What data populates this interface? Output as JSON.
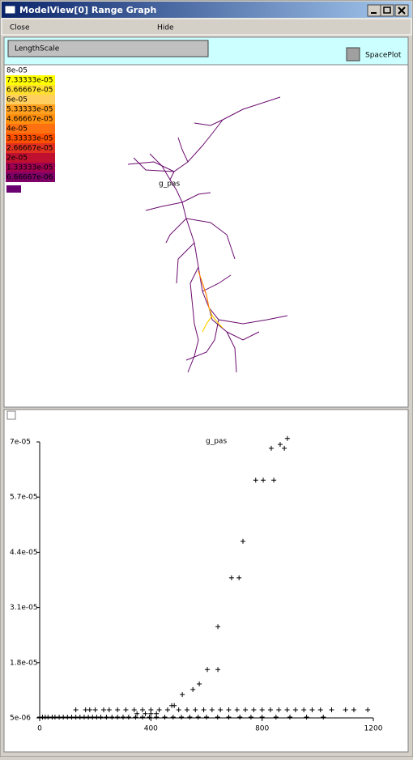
{
  "window": {
    "title": "ModelView[0] Range Graph"
  },
  "menu": [
    "Close",
    "Hide"
  ],
  "shape_plot": {
    "button": "LengthScale",
    "checkbox": "SpacePlot",
    "label": "g_pas",
    "scale": [
      {
        "label": "8e-05",
        "color": "#ffffff"
      },
      {
        "label": "7.33333e-05",
        "color": "#ffff00"
      },
      {
        "label": "6.66667e-05",
        "color": "#ffe030"
      },
      {
        "label": "6e-05",
        "color": "#ffd060"
      },
      {
        "label": "5.33333e-05",
        "color": "#ffa020"
      },
      {
        "label": "4.66667e-05",
        "color": "#ff9010"
      },
      {
        "label": "4e-05",
        "color": "#ff7010"
      },
      {
        "label": "3.33333e-05",
        "color": "#ff5000"
      },
      {
        "label": "2.66667e-05",
        "color": "#e03020"
      },
      {
        "label": "2e-05",
        "color": "#c01030"
      },
      {
        "label": "1.33333e-05",
        "color": "#a00050"
      },
      {
        "label": "6.66667e-06",
        "color": "#800068"
      }
    ]
  },
  "chart_data": {
    "type": "scatter",
    "title": "g_pas",
    "color": "#000000",
    "x": [
      833,
      865,
      880,
      891,
      777,
      804,
      842,
      731,
      690,
      717,
      641,
      603,
      641,
      574,
      551,
      513,
      475,
      484,
      0,
      10,
      20,
      30,
      45,
      55,
      70,
      85,
      100,
      115,
      130,
      145,
      160,
      175,
      190,
      205,
      220,
      240,
      260,
      280,
      300,
      320,
      345,
      370,
      395,
      420,
      450,
      480,
      510,
      540,
      570,
      600,
      640,
      680,
      720,
      760,
      800,
      850,
      900,
      960,
      1020,
      130,
      165,
      180,
      200,
      230,
      250,
      280,
      310,
      340,
      370,
      400,
      430,
      460,
      500,
      530,
      560,
      590,
      620,
      650,
      680,
      710,
      740,
      770,
      800,
      830,
      860,
      890,
      920,
      950,
      980,
      1010,
      1050,
      1100,
      1130,
      1180,
      350,
      380,
      400,
      420
    ],
    "values": [
      6.85e-05,
      6.94e-05,
      6.85e-05,
      7.08e-05,
      6.1e-05,
      6.1e-05,
      6.1e-05,
      4.66e-05,
      3.8e-05,
      3.8e-05,
      2.65e-05,
      1.64e-05,
      1.64e-05,
      1.3e-05,
      1.17e-05,
      1.05e-05,
      7.9e-06,
      7.9e-06,
      5.2e-06,
      5.2e-06,
      5.2e-06,
      5.2e-06,
      5.2e-06,
      5.2e-06,
      5.2e-06,
      5.2e-06,
      5.2e-06,
      5.2e-06,
      5.2e-06,
      5.2e-06,
      5.2e-06,
      5.2e-06,
      5.2e-06,
      5.2e-06,
      5.2e-06,
      5.2e-06,
      5.2e-06,
      5.2e-06,
      5.2e-06,
      5.2e-06,
      5.2e-06,
      5.2e-06,
      5.2e-06,
      5.2e-06,
      5.2e-06,
      5.2e-06,
      5.2e-06,
      5.2e-06,
      5.2e-06,
      5.2e-06,
      5.2e-06,
      5.2e-06,
      5.2e-06,
      5.2e-06,
      5.2e-06,
      5.2e-06,
      5.2e-06,
      5.2e-06,
      5.2e-06,
      6.9e-06,
      6.9e-06,
      6.9e-06,
      6.9e-06,
      6.9e-06,
      6.9e-06,
      6.9e-06,
      6.9e-06,
      6.9e-06,
      6.9e-06,
      6.9e-06,
      6.9e-06,
      6.9e-06,
      6.9e-06,
      6.9e-06,
      6.9e-06,
      6.9e-06,
      6.9e-06,
      6.9e-06,
      6.9e-06,
      6.9e-06,
      6.9e-06,
      6.9e-06,
      6.9e-06,
      6.9e-06,
      6.9e-06,
      6.9e-06,
      6.9e-06,
      6.9e-06,
      6.9e-06,
      6.9e-06,
      6.9e-06,
      6.9e-06,
      6.9e-06,
      6.9e-06,
      6e-06,
      6e-06,
      6e-06,
      6e-06
    ],
    "xlim": [
      0,
      1200
    ],
    "xticks": [
      0,
      400,
      800,
      1200
    ],
    "ylim": [
      5e-06,
      7e-05
    ],
    "yticks": [
      {
        "value": 5e-06,
        "label": "5e-06"
      },
      {
        "value": 1.8e-05,
        "label": "1.8e-05"
      },
      {
        "value": 3.1e-05,
        "label": "3.1e-05"
      },
      {
        "value": 4.4e-05,
        "label": "4.4e-05"
      },
      {
        "value": 5.7e-05,
        "label": "5.7e-05"
      },
      {
        "value": 7e-05,
        "label": "7e-05"
      }
    ]
  }
}
